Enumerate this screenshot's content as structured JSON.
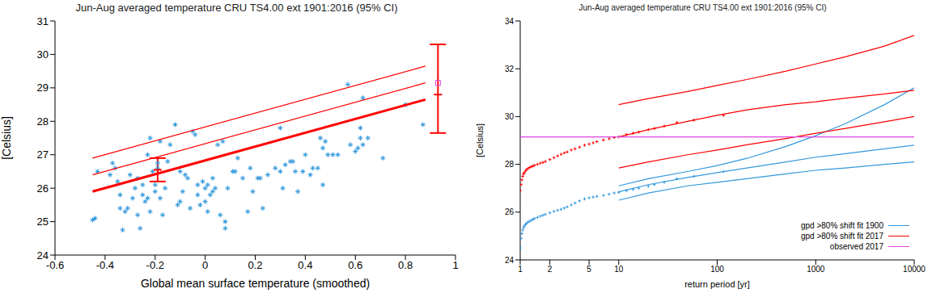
{
  "chart_data": [
    {
      "type": "scatter",
      "title": "Jun-Aug averaged temperature CRU TS4.00 ext 1901:2016 (95% CI)",
      "x_label": "Global mean surface temperature (smoothed)",
      "y_label": "[Celsius]",
      "xlim": [
        -0.6,
        1
      ],
      "xticks": [
        -0.6,
        -0.4,
        -0.2,
        0,
        0.2,
        0.4,
        0.6,
        0.8,
        1
      ],
      "ylim": [
        24,
        31
      ],
      "yticks": [
        24,
        25,
        26,
        27,
        28,
        29,
        30,
        31
      ],
      "grid": false,
      "series": [
        {
          "type": "scatter",
          "color": "#3399dd",
          "marker": "star",
          "x": [
            -0.45,
            -0.44,
            -0.43,
            -0.38,
            -0.37,
            -0.36,
            -0.35,
            -0.34,
            -0.34,
            -0.33,
            -0.32,
            -0.31,
            -0.3,
            -0.29,
            -0.28,
            -0.27,
            -0.27,
            -0.26,
            -0.25,
            -0.25,
            -0.24,
            -0.23,
            -0.23,
            -0.22,
            -0.22,
            -0.21,
            -0.2,
            -0.2,
            -0.19,
            -0.19,
            -0.18,
            -0.18,
            -0.17,
            -0.16,
            -0.15,
            -0.14,
            -0.12,
            -0.11,
            -0.1,
            -0.1,
            -0.09,
            -0.08,
            -0.07,
            -0.06,
            -0.05,
            -0.04,
            -0.03,
            -0.03,
            -0.02,
            -0.01,
            0,
            0,
            0.01,
            0.01,
            0.02,
            0.03,
            0.03,
            0.04,
            0.05,
            0.06,
            0.07,
            0.08,
            0.08,
            0.09,
            0.11,
            0.12,
            0.13,
            0.15,
            0.17,
            0.18,
            0.19,
            0.21,
            0.22,
            0.23,
            0.25,
            0.28,
            0.3,
            0.3,
            0.31,
            0.32,
            0.34,
            0.35,
            0.36,
            0.37,
            0.39,
            0.4,
            0.42,
            0.43,
            0.45,
            0.46,
            0.47,
            0.47,
            0.48,
            0.49,
            0.51,
            0.53,
            0.57,
            0.58,
            0.6,
            0.61,
            0.62,
            0.62,
            0.63,
            0.63,
            0.65,
            0.71,
            0.8,
            0.87
          ],
          "values": [
            25.05,
            25.1,
            26.5,
            26.4,
            26.75,
            26.6,
            26.2,
            25.8,
            25.4,
            24.75,
            25.3,
            25.4,
            26.4,
            25.7,
            26,
            26.3,
            25.2,
            24.8,
            26.1,
            25.8,
            25.6,
            25.7,
            27,
            25.3,
            27.5,
            26.5,
            26.1,
            25.9,
            26.75,
            26.6,
            25.7,
            27.4,
            25.2,
            26,
            26.8,
            27.3,
            27.9,
            25.5,
            26.5,
            25.6,
            25.9,
            26.4,
            26.3,
            25.4,
            27.7,
            27.6,
            26.1,
            25.8,
            25.5,
            26.2,
            26,
            25.6,
            26.1,
            25.3,
            25.8,
            26.3,
            25.9,
            26,
            27.3,
            25.2,
            27.4,
            25,
            24.8,
            26,
            26.5,
            26.5,
            26.9,
            26.3,
            25.3,
            26.6,
            25.9,
            26.3,
            26.3,
            25.4,
            26.4,
            26.6,
            27.8,
            26.5,
            26,
            26.7,
            26.8,
            26.8,
            26.5,
            25.9,
            26.5,
            27,
            26.4,
            26.6,
            26.6,
            27.5,
            27.2,
            26.1,
            27.4,
            27,
            27,
            27,
            29.1,
            27.3,
            27.1,
            27.2,
            27.5,
            27.8,
            28.7,
            27.3,
            27.5,
            26.9,
            28.5,
            27.9
          ]
        },
        {
          "type": "line",
          "color": "#ff0000",
          "line_style": "bold",
          "x": [
            -0.45,
            0.88
          ],
          "values": [
            25.9,
            28.65
          ]
        },
        {
          "type": "line",
          "color": "#ff0000",
          "line_style": "solid",
          "x": [
            -0.45,
            0.88
          ],
          "values": [
            26.4,
            29.15
          ]
        },
        {
          "type": "line",
          "color": "#ff0000",
          "line_style": "solid",
          "x": [
            -0.45,
            0.88
          ],
          "values": [
            26.9,
            29.65
          ]
        },
        {
          "type": "errorbar",
          "color": "#ff0000",
          "marker": "dash",
          "x": [
            -0.19,
            0.93
          ],
          "values": [
            26.55,
            28.8
          ],
          "error_minus": [
            0.35,
            1.15
          ],
          "error_plus": [
            0.35,
            1.5
          ]
        },
        {
          "type": "scatter",
          "color": "#dd44dd",
          "marker": "square",
          "x": [
            0.93
          ],
          "values": [
            29.15
          ]
        }
      ]
    },
    {
      "type": "line",
      "title": "Jun-Aug averaged temperature CRU TS4.00 ext 1901:2016 (95% CI)",
      "x_label": "return period [yr]",
      "y_label": "[Celsius]",
      "log": "x",
      "xlim": [
        1,
        10000
      ],
      "xticks": [
        1,
        2,
        5,
        10,
        100,
        1000,
        10000
      ],
      "ylim": [
        24,
        34
      ],
      "yticks": [
        24,
        26,
        28,
        30,
        32,
        34
      ],
      "grid": false,
      "legend": "lower right",
      "series": [
        {
          "type": "scatter",
          "color": "#3399dd",
          "marker": "plus",
          "x": [
            1,
            1.02,
            1.04,
            1.06,
            1.08,
            1.1,
            1.13,
            1.16,
            1.2,
            1.25,
            1.3,
            1.35,
            1.4,
            1.5,
            1.6,
            1.7,
            1.8,
            2,
            2.2,
            2.4,
            2.6,
            2.8,
            3,
            3.3,
            3.6,
            4,
            4.5,
            5,
            5.5,
            6,
            7,
            8,
            9,
            10,
            12,
            14,
            16,
            20,
            23,
            29,
            39,
            58,
            116
          ],
          "values": [
            24.5,
            24.9,
            25.1,
            25.25,
            25.35,
            25.42,
            25.48,
            25.53,
            25.58,
            25.62,
            25.66,
            25.7,
            25.73,
            25.78,
            25.83,
            25.87,
            25.9,
            25.97,
            26.03,
            26.08,
            26.12,
            26.17,
            26.22,
            26.3,
            26.38,
            26.47,
            26.55,
            26.6,
            26.63,
            26.66,
            26.7,
            26.75,
            26.8,
            26.83,
            26.9,
            26.95,
            27,
            27.08,
            27.15,
            27.25,
            27.4,
            27.5,
            27.7
          ]
        },
        {
          "type": "scatter",
          "color": "#ff0000",
          "marker": "plus",
          "x": [
            1,
            1.02,
            1.04,
            1.06,
            1.08,
            1.1,
            1.13,
            1.16,
            1.2,
            1.25,
            1.3,
            1.35,
            1.4,
            1.5,
            1.6,
            1.7,
            1.8,
            2,
            2.2,
            2.4,
            2.6,
            2.8,
            3,
            3.3,
            3.6,
            4,
            4.5,
            5,
            5.5,
            6,
            7,
            8,
            9,
            10,
            12,
            14,
            16,
            20,
            23,
            29,
            39,
            58,
            116
          ],
          "values": [
            26.9,
            27.15,
            27.35,
            27.5,
            27.6,
            27.65,
            27.72,
            27.78,
            27.82,
            27.87,
            27.9,
            27.93,
            27.96,
            28,
            28.05,
            28.08,
            28.12,
            28.2,
            28.28,
            28.35,
            28.42,
            28.48,
            28.52,
            28.6,
            28.65,
            28.72,
            28.8,
            28.85,
            28.9,
            28.95,
            29.02,
            29.07,
            29.12,
            29.15,
            29.25,
            29.3,
            29.35,
            29.45,
            29.5,
            29.6,
            29.75,
            29.85,
            30.05
          ]
        },
        {
          "type": "line",
          "name": "gpd >80% shift fit 1900",
          "color": "#3399dd",
          "line_style": "solid",
          "x": [
            10,
            20,
            50,
            100,
            200,
            500,
            1000,
            2000,
            5000,
            10000
          ],
          "values": [
            26.85,
            27.15,
            27.45,
            27.65,
            27.85,
            28.1,
            28.3,
            28.45,
            28.65,
            28.8
          ]
        },
        {
          "type": "line",
          "color": "#3399dd",
          "line_style": "solid",
          "x": [
            10,
            20,
            50,
            100,
            200,
            500,
            1000,
            2000,
            5000,
            10000
          ],
          "values": [
            27.1,
            27.4,
            27.7,
            27.95,
            28.25,
            28.75,
            29.2,
            29.7,
            30.5,
            31.2
          ]
        },
        {
          "type": "line",
          "color": "#3399dd",
          "line_style": "solid",
          "x": [
            10,
            20,
            50,
            100,
            200,
            500,
            1000,
            2000,
            5000,
            10000
          ],
          "values": [
            26.5,
            26.8,
            27.1,
            27.25,
            27.4,
            27.6,
            27.75,
            27.85,
            28,
            28.1
          ]
        },
        {
          "type": "line",
          "name": "gpd >80% shift fit 2017",
          "color": "#ff0000",
          "line_style": "solid",
          "x": [
            10,
            20,
            50,
            100,
            200,
            500,
            1000,
            2000,
            5000,
            10000
          ],
          "values": [
            29.15,
            29.45,
            29.8,
            30.05,
            30.28,
            30.5,
            30.62,
            30.77,
            30.95,
            31.1
          ]
        },
        {
          "type": "line",
          "color": "#ff0000",
          "line_style": "solid",
          "x": [
            10,
            20,
            50,
            100,
            200,
            500,
            1000,
            2000,
            5000,
            10000
          ],
          "values": [
            30.5,
            30.75,
            31.05,
            31.3,
            31.55,
            31.9,
            32.2,
            32.5,
            32.95,
            33.4
          ]
        },
        {
          "type": "line",
          "color": "#ff0000",
          "line_style": "solid",
          "x": [
            10,
            20,
            50,
            100,
            200,
            500,
            1000,
            2000,
            5000,
            10000
          ],
          "values": [
            27.85,
            28.1,
            28.4,
            28.6,
            28.82,
            29.08,
            29.3,
            29.5,
            29.78,
            30
          ]
        },
        {
          "type": "line",
          "name": "observed 2017",
          "color": "#dd44dd",
          "line_style": "solid",
          "x": [
            1,
            10000
          ],
          "values": [
            29.15,
            29.15
          ]
        }
      ]
    }
  ]
}
